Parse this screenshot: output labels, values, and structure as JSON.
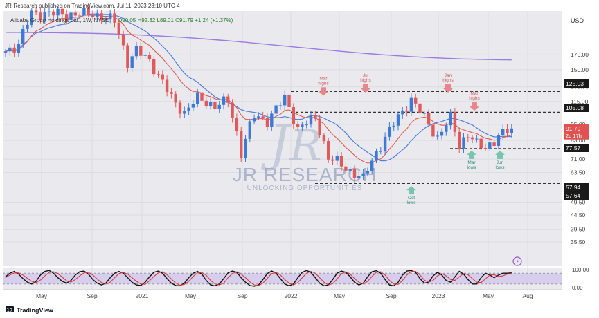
{
  "header": {
    "published": "JR-Research published on TradingView.com, Jul 11, 2023 23:10 UTC-4",
    "symbol": "Alibaba Group Holdings Ltd., 1W, NYSE",
    "ohlc": "O90.05  H92.32  L89.01  C91.79  +1.24 (+1.37%)"
  },
  "footer": {
    "brand": "TradingView"
  },
  "watermark": {
    "title": "JR RESEARCH",
    "tagline": "UNLOCKING OPPORTUNITIES"
  },
  "colors": {
    "up": "#3d7ad6",
    "down": "#e05a5a",
    "ema_fast": "#e45a52",
    "ma_slow": "#4f7de0",
    "ma_long": "#9a7be0",
    "label_bg": "#1a1a1a",
    "price_tag": "#e05252",
    "annot_red": "#e8868a",
    "annot_teal": "#76c6ad"
  },
  "chart_data": {
    "type": "candlestick",
    "currency": "USD",
    "y_scale": "log",
    "ylim": [
      29,
      245
    ],
    "x_ticks": [
      "May",
      "Sep",
      "2021",
      "May",
      "Sep",
      "2022",
      "May",
      "Sep",
      "2023",
      "May",
      "Aug"
    ],
    "y_ticks": [
      170.0,
      150.0,
      130.0,
      115.0,
      95.0,
      83.0,
      71.0,
      63.5,
      49.5,
      44.5,
      39.5,
      35.5
    ],
    "price_labels": [
      {
        "value": 125.03,
        "text": "125.03"
      },
      {
        "value": 105.08,
        "text": "105.08"
      },
      {
        "value": 77.57,
        "text": "77.57"
      },
      {
        "value": 57.94,
        "text": "57.94"
      },
      {
        "value": 57.64,
        "text": "57.64"
      }
    ],
    "current_price": {
      "value": 91.79,
      "text": "91.79",
      "countdown": "2d 17h"
    },
    "horizontal_levels": [
      125.03,
      105.08,
      77.57,
      57.94
    ],
    "annotations": [
      {
        "label": "Mar highs",
        "type": "high",
        "anchor": 118
      },
      {
        "label": "Jul highs",
        "type": "high",
        "anchor": 121
      },
      {
        "label": "Jan highs",
        "type": "high",
        "anchor": 121
      },
      {
        "label": "Mar highs",
        "type": "high",
        "anchor": 104
      },
      {
        "label": "Oct lows",
        "type": "low",
        "anchor": 58
      },
      {
        "label": "Mar lows",
        "type": "low",
        "anchor": 78
      },
      {
        "label": "Jun lows",
        "type": "low",
        "anchor": 78
      }
    ],
    "anchors": [
      {
        "t": 0,
        "p": 175
      },
      {
        "t": 3,
        "p": 185
      },
      {
        "t": 6,
        "p": 240
      },
      {
        "t": 10,
        "p": 240
      },
      {
        "t": 16,
        "p": 238
      },
      {
        "t": 20,
        "p": 240
      },
      {
        "t": 25,
        "p": 225
      },
      {
        "t": 28,
        "p": 160
      },
      {
        "t": 30,
        "p": 175
      },
      {
        "t": 33,
        "p": 163
      },
      {
        "t": 35,
        "p": 143
      },
      {
        "t": 38,
        "p": 118
      },
      {
        "t": 41,
        "p": 105
      },
      {
        "t": 44,
        "p": 118
      },
      {
        "t": 48,
        "p": 111
      },
      {
        "t": 51,
        "p": 115
      },
      {
        "t": 54,
        "p": 75
      },
      {
        "t": 57,
        "p": 102
      },
      {
        "t": 60,
        "p": 98
      },
      {
        "t": 64,
        "p": 118
      },
      {
        "t": 67,
        "p": 92
      },
      {
        "t": 71,
        "p": 100
      },
      {
        "t": 74,
        "p": 72
      },
      {
        "t": 78,
        "p": 66
      },
      {
        "t": 82,
        "p": 60
      },
      {
        "t": 85,
        "p": 75
      },
      {
        "t": 88,
        "p": 90
      },
      {
        "t": 93,
        "p": 117
      },
      {
        "t": 96,
        "p": 100
      },
      {
        "t": 99,
        "p": 85
      },
      {
        "t": 102,
        "p": 100
      },
      {
        "t": 104,
        "p": 80
      },
      {
        "t": 106,
        "p": 88
      },
      {
        "t": 108,
        "p": 80
      },
      {
        "t": 110,
        "p": 78
      },
      {
        "t": 113,
        "p": 86
      },
      {
        "t": 116,
        "p": 91.79
      }
    ],
    "oscillator": {
      "y_ticks": [
        100.0,
        0.0
      ],
      "upper": 80,
      "lower": 20,
      "k_values": [
        60,
        80,
        90,
        75,
        50,
        30,
        20,
        35,
        70,
        90,
        95,
        80,
        55,
        35,
        25,
        40,
        70,
        88,
        92,
        75,
        45,
        25,
        15,
        25,
        55,
        80,
        90,
        80,
        55,
        30,
        15,
        12,
        30,
        60,
        85,
        92,
        80,
        50,
        25,
        12,
        10,
        25,
        55,
        80,
        90,
        75,
        40,
        15,
        10,
        20,
        50,
        82,
        92,
        85,
        55,
        30,
        12,
        8,
        15,
        45,
        78,
        92,
        80,
        50,
        20,
        10,
        20,
        55,
        85,
        95,
        85,
        55,
        25,
        10,
        15,
        45,
        80,
        92,
        85,
        60,
        30,
        15,
        25,
        60,
        88,
        94,
        80,
        45,
        15,
        10,
        30,
        70,
        92,
        95,
        85,
        50,
        25,
        30,
        65,
        85,
        70,
        40,
        30,
        60,
        90,
        75,
        45,
        20,
        20,
        55,
        80,
        70,
        55,
        70,
        80,
        80,
        82
      ],
      "d_values": [
        55,
        70,
        82,
        82,
        70,
        52,
        35,
        28,
        42,
        65,
        85,
        88,
        78,
        58,
        38,
        30,
        45,
        65,
        82,
        85,
        70,
        48,
        28,
        20,
        30,
        55,
        78,
        85,
        75,
        55,
        35,
        20,
        18,
        38,
        62,
        82,
        88,
        72,
        48,
        25,
        14,
        18,
        35,
        62,
        82,
        85,
        68,
        40,
        20,
        15,
        25,
        55,
        78,
        88,
        75,
        55,
        32,
        15,
        12,
        25,
        52,
        78,
        85,
        70,
        45,
        25,
        15,
        28,
        55,
        80,
        90,
        80,
        55,
        30,
        15,
        22,
        48,
        78,
        88,
        75,
        50,
        30,
        20,
        35,
        62,
        85,
        88,
        70,
        40,
        20,
        18,
        40,
        70,
        90,
        90,
        70,
        42,
        30,
        40,
        65,
        78,
        65,
        45,
        40,
        60,
        78,
        72,
        50,
        30,
        28,
        48,
        70,
        72,
        62,
        65,
        75,
        79
      ]
    }
  }
}
